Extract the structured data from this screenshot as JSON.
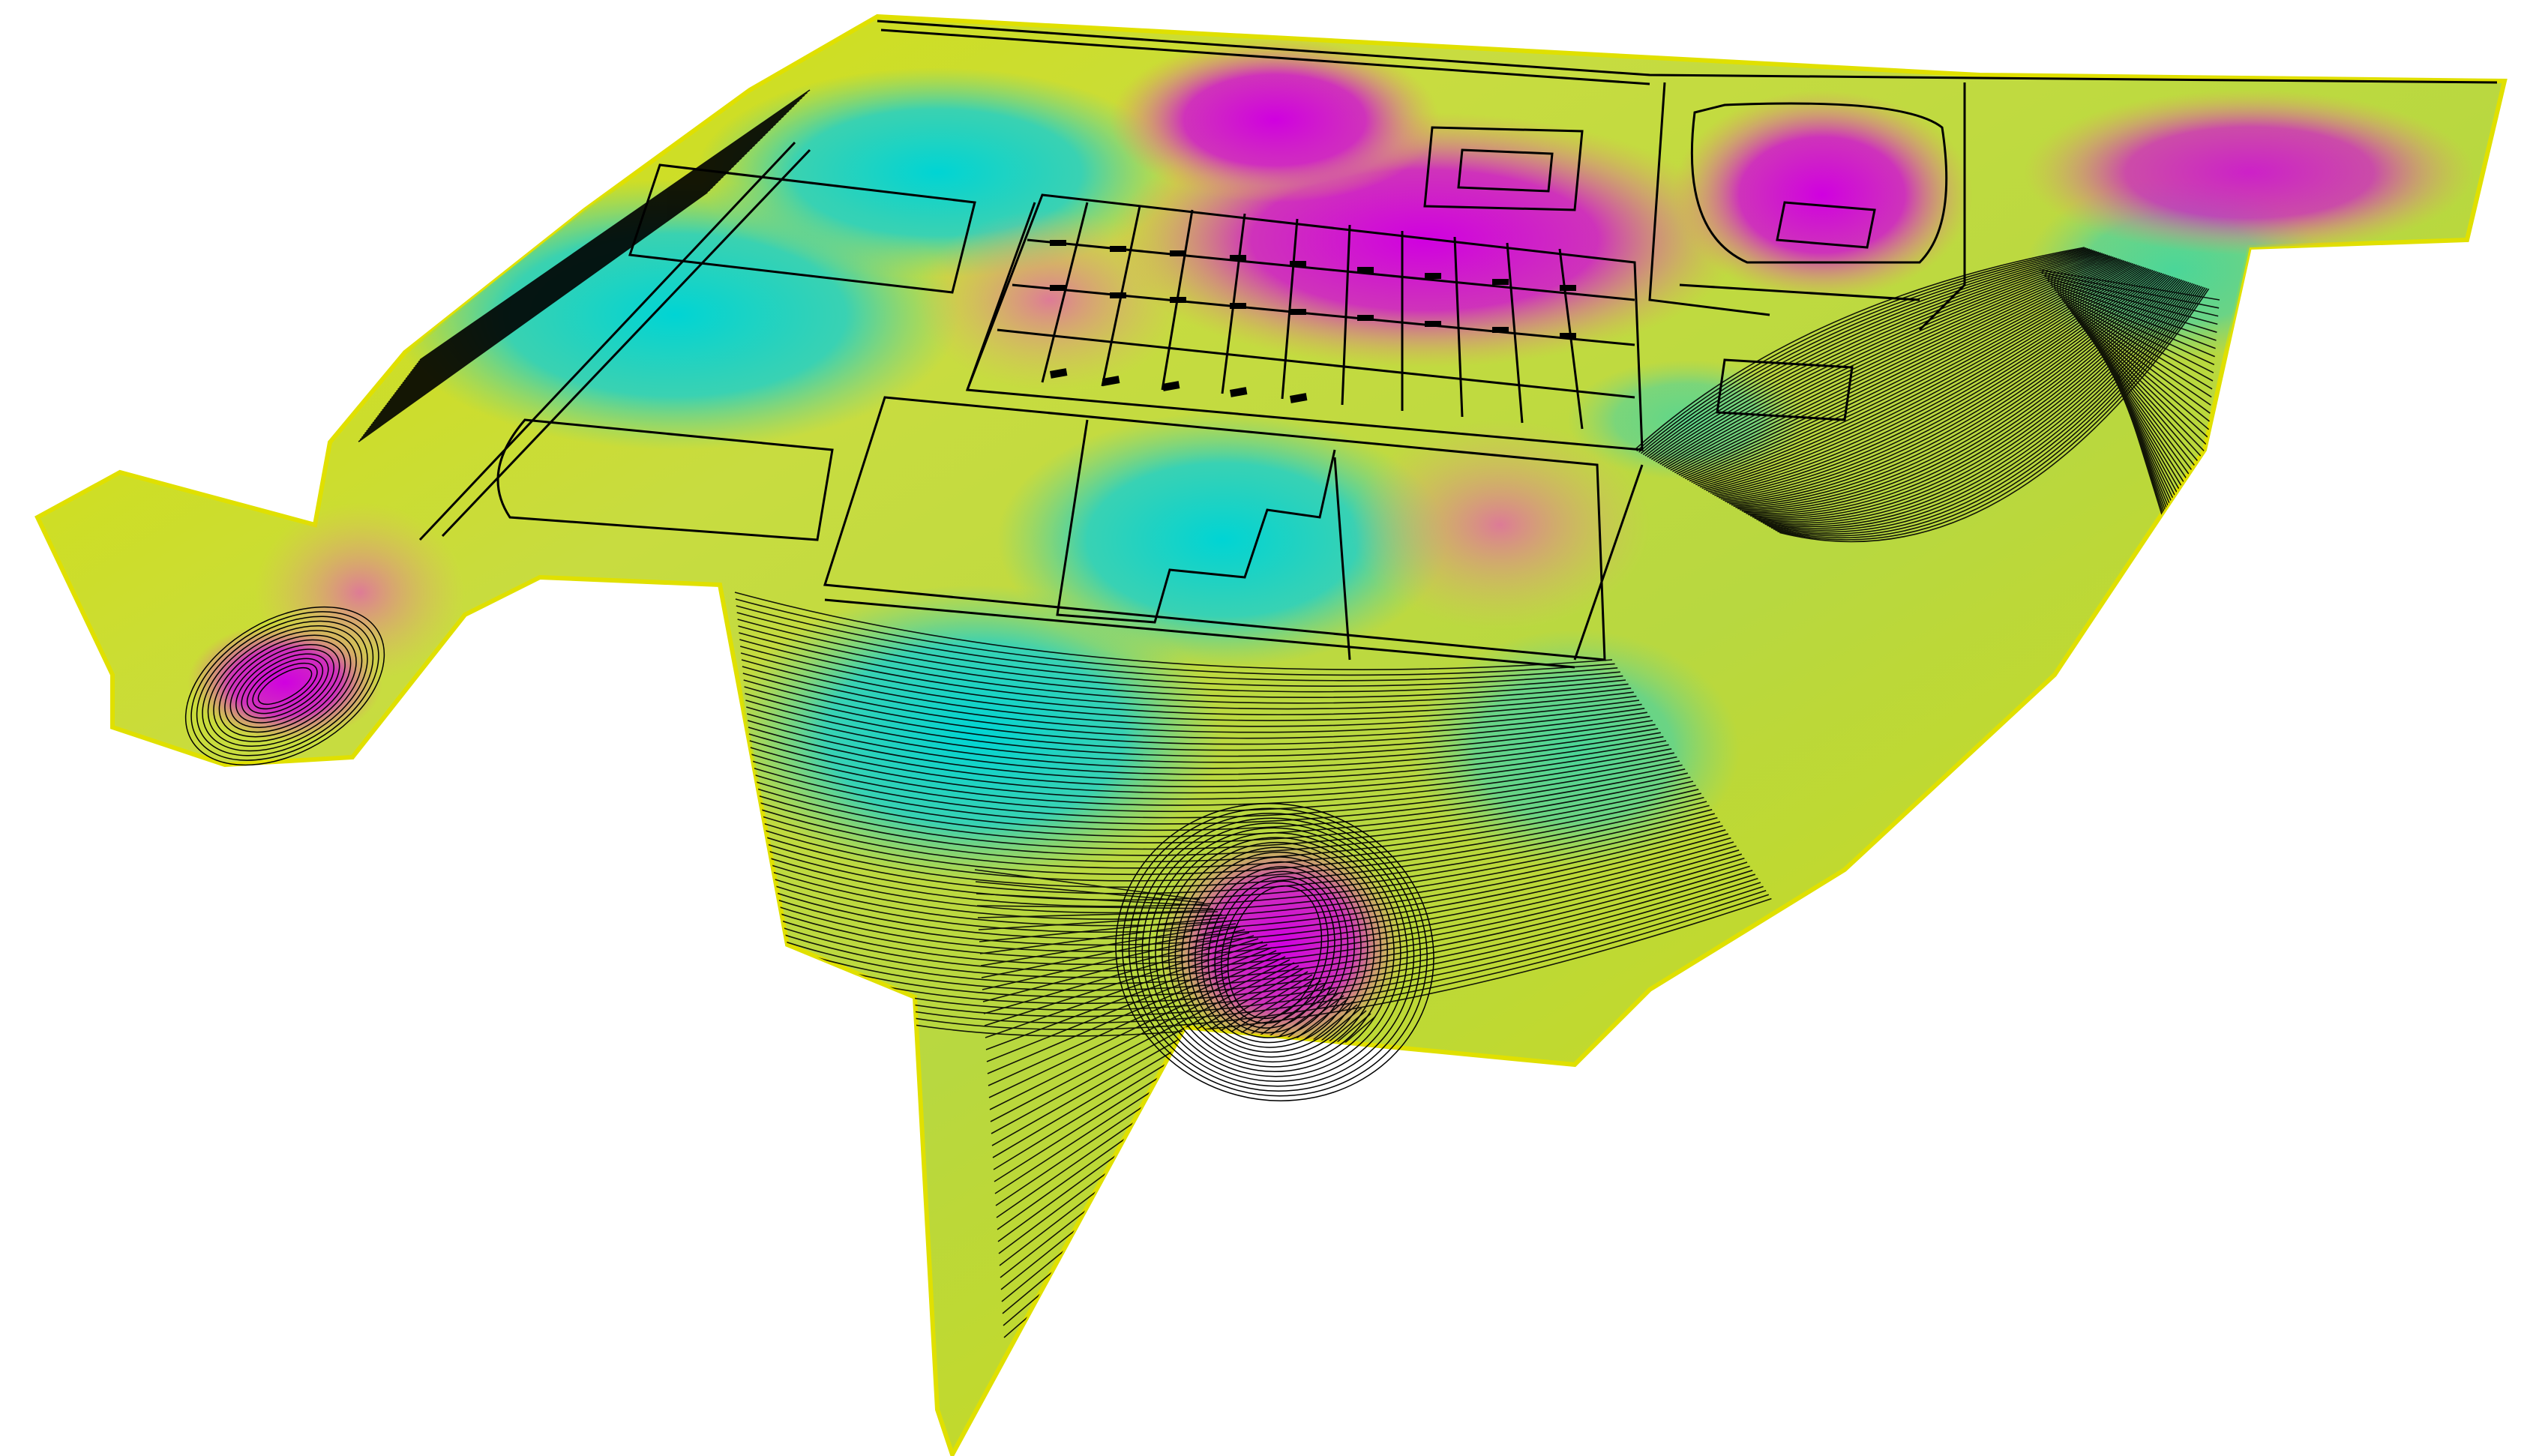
{
  "view": {
    "background": "#ffffff",
    "rendering": "3d-perspective-surface"
  },
  "surface": {
    "color_ramp": [
      "#d8e000",
      "#e8d8a0",
      "#d000d0",
      "#00d0d0"
    ],
    "low_color": "#00cccc",
    "mid_color": "#d4d400",
    "high_color": "#cc00cc",
    "edge_color": "#e0e000",
    "contour_color": "#000000"
  },
  "features": {
    "parking_lot": true,
    "building_footprints": true,
    "access_roads": true,
    "cul_de_sac": true,
    "detention_basin": true
  }
}
